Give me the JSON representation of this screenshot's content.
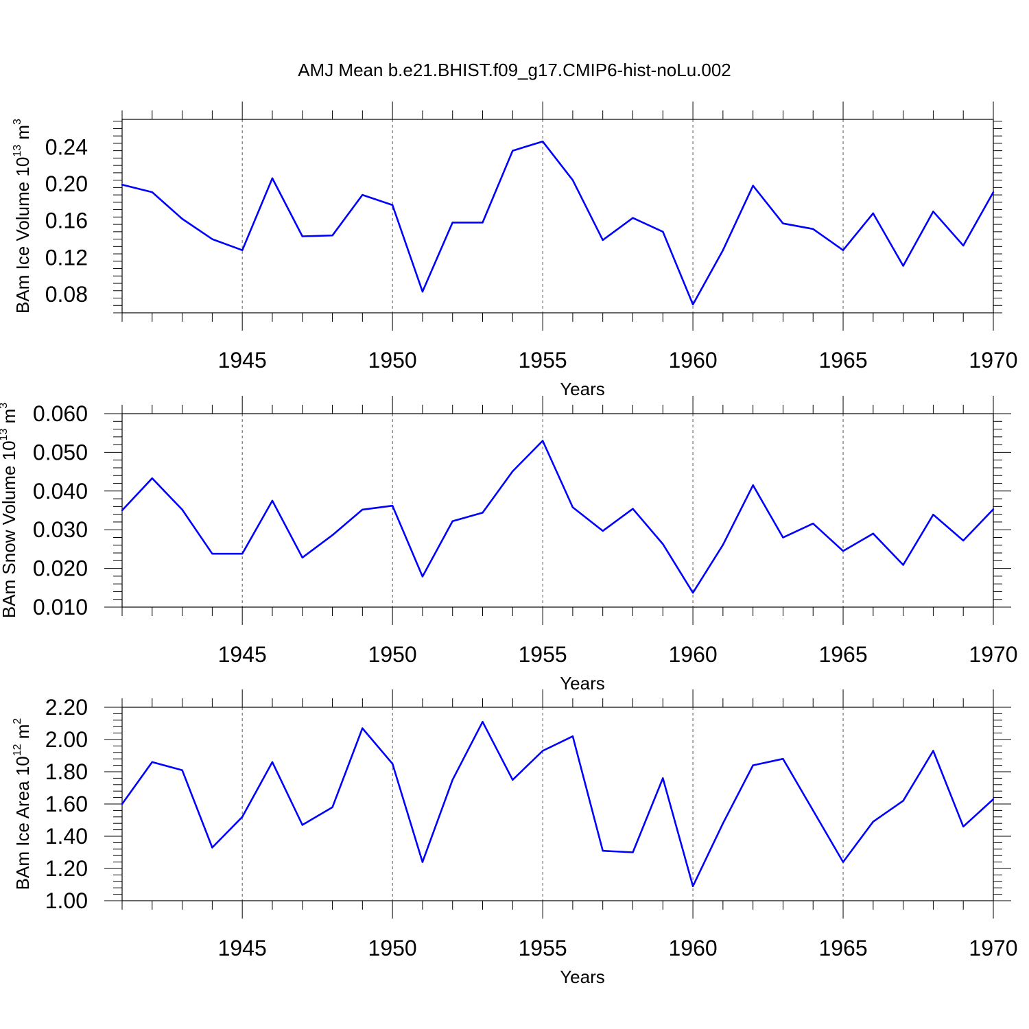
{
  "title": "AMJ Mean b.e21.BHIST.f09_g17.CMIP6-hist-noLu.002",
  "line_color": "#0000ff",
  "chart_data": [
    {
      "type": "line",
      "ylabel": {
        "prefix": "BAm Ice Volume 10",
        "exp": "13",
        "unit": " m",
        "unit_exp": "3"
      },
      "xlabel": "Years",
      "xlim": [
        1941,
        1970
      ],
      "ylim": [
        0.06,
        0.27
      ],
      "xticks": [
        1945,
        1950,
        1955,
        1960,
        1965,
        1970
      ],
      "xtick_labels": [
        "1945",
        "1950",
        "1955",
        "1960",
        "1965",
        "1970"
      ],
      "yticks": [
        0.08,
        0.12,
        0.16,
        0.2,
        0.24
      ],
      "ytick_labels": [
        "0.08",
        "0.12",
        "0.16",
        "0.20",
        "0.24"
      ],
      "grid_x": true,
      "x": [
        1941,
        1942,
        1943,
        1944,
        1945,
        1946,
        1947,
        1948,
        1949,
        1950,
        1951,
        1952,
        1953,
        1954,
        1955,
        1956,
        1957,
        1958,
        1959,
        1960,
        1961,
        1962,
        1963,
        1964,
        1965,
        1966,
        1967,
        1968,
        1969,
        1970
      ],
      "values": [
        0.199,
        0.191,
        0.162,
        0.14,
        0.128,
        0.206,
        0.143,
        0.144,
        0.188,
        0.177,
        0.083,
        0.158,
        0.158,
        0.236,
        0.246,
        0.204,
        0.139,
        0.163,
        0.148,
        0.069,
        0.128,
        0.198,
        0.157,
        0.151,
        0.128,
        0.168,
        0.111,
        0.17,
        0.133,
        0.191
      ]
    },
    {
      "type": "line",
      "ylabel": {
        "prefix": "BAm Snow Volume 10",
        "exp": "13",
        "unit": " m",
        "unit_exp": "3"
      },
      "xlabel": "Years",
      "xlim": [
        1941,
        1970
      ],
      "ylim": [
        0.01,
        0.06
      ],
      "xticks": [
        1945,
        1950,
        1955,
        1960,
        1965,
        1970
      ],
      "xtick_labels": [
        "1945",
        "1950",
        "1955",
        "1960",
        "1965",
        "1970"
      ],
      "yticks": [
        0.01,
        0.02,
        0.03,
        0.04,
        0.05,
        0.06
      ],
      "ytick_labels": [
        "0.010",
        "0.020",
        "0.030",
        "0.040",
        "0.050",
        "0.060"
      ],
      "grid_x": true,
      "x": [
        1941,
        1942,
        1943,
        1944,
        1945,
        1946,
        1947,
        1948,
        1949,
        1950,
        1951,
        1952,
        1953,
        1954,
        1955,
        1956,
        1957,
        1958,
        1959,
        1960,
        1961,
        1962,
        1963,
        1964,
        1965,
        1966,
        1967,
        1968,
        1969,
        1970
      ],
      "values": [
        0.035,
        0.0433,
        0.0352,
        0.0238,
        0.0238,
        0.0375,
        0.0228,
        0.0286,
        0.0352,
        0.0362,
        0.0179,
        0.0322,
        0.0344,
        0.0451,
        0.053,
        0.0358,
        0.0297,
        0.0354,
        0.0263,
        0.0137,
        0.0261,
        0.0415,
        0.028,
        0.0316,
        0.0245,
        0.029,
        0.0209,
        0.0339,
        0.0272,
        0.0353
      ]
    },
    {
      "type": "line",
      "ylabel": {
        "prefix": "BAm Ice Area 10",
        "exp": "12",
        "unit": " m",
        "unit_exp": "2"
      },
      "xlabel": "Years",
      "xlim": [
        1941,
        1970
      ],
      "ylim": [
        1.0,
        2.2
      ],
      "xticks": [
        1945,
        1950,
        1955,
        1960,
        1965,
        1970
      ],
      "xtick_labels": [
        "1945",
        "1950",
        "1955",
        "1960",
        "1965",
        "1970"
      ],
      "yticks": [
        1.0,
        1.2,
        1.4,
        1.6,
        1.8,
        2.0,
        2.2
      ],
      "ytick_labels": [
        "1.00",
        "1.20",
        "1.40",
        "1.60",
        "1.80",
        "2.00",
        "2.20"
      ],
      "grid_x": true,
      "x": [
        1941,
        1942,
        1943,
        1944,
        1945,
        1946,
        1947,
        1948,
        1949,
        1950,
        1951,
        1952,
        1953,
        1954,
        1955,
        1956,
        1957,
        1958,
        1959,
        1960,
        1961,
        1962,
        1963,
        1964,
        1965,
        1966,
        1967,
        1968,
        1969,
        1970
      ],
      "values": [
        1.6,
        1.86,
        1.81,
        1.33,
        1.52,
        1.86,
        1.47,
        1.58,
        2.07,
        1.85,
        1.24,
        1.75,
        2.11,
        1.75,
        1.93,
        2.02,
        1.31,
        1.3,
        1.76,
        1.09,
        1.48,
        1.84,
        1.88,
        1.56,
        1.24,
        1.49,
        1.62,
        1.93,
        1.46,
        1.63
      ]
    }
  ]
}
